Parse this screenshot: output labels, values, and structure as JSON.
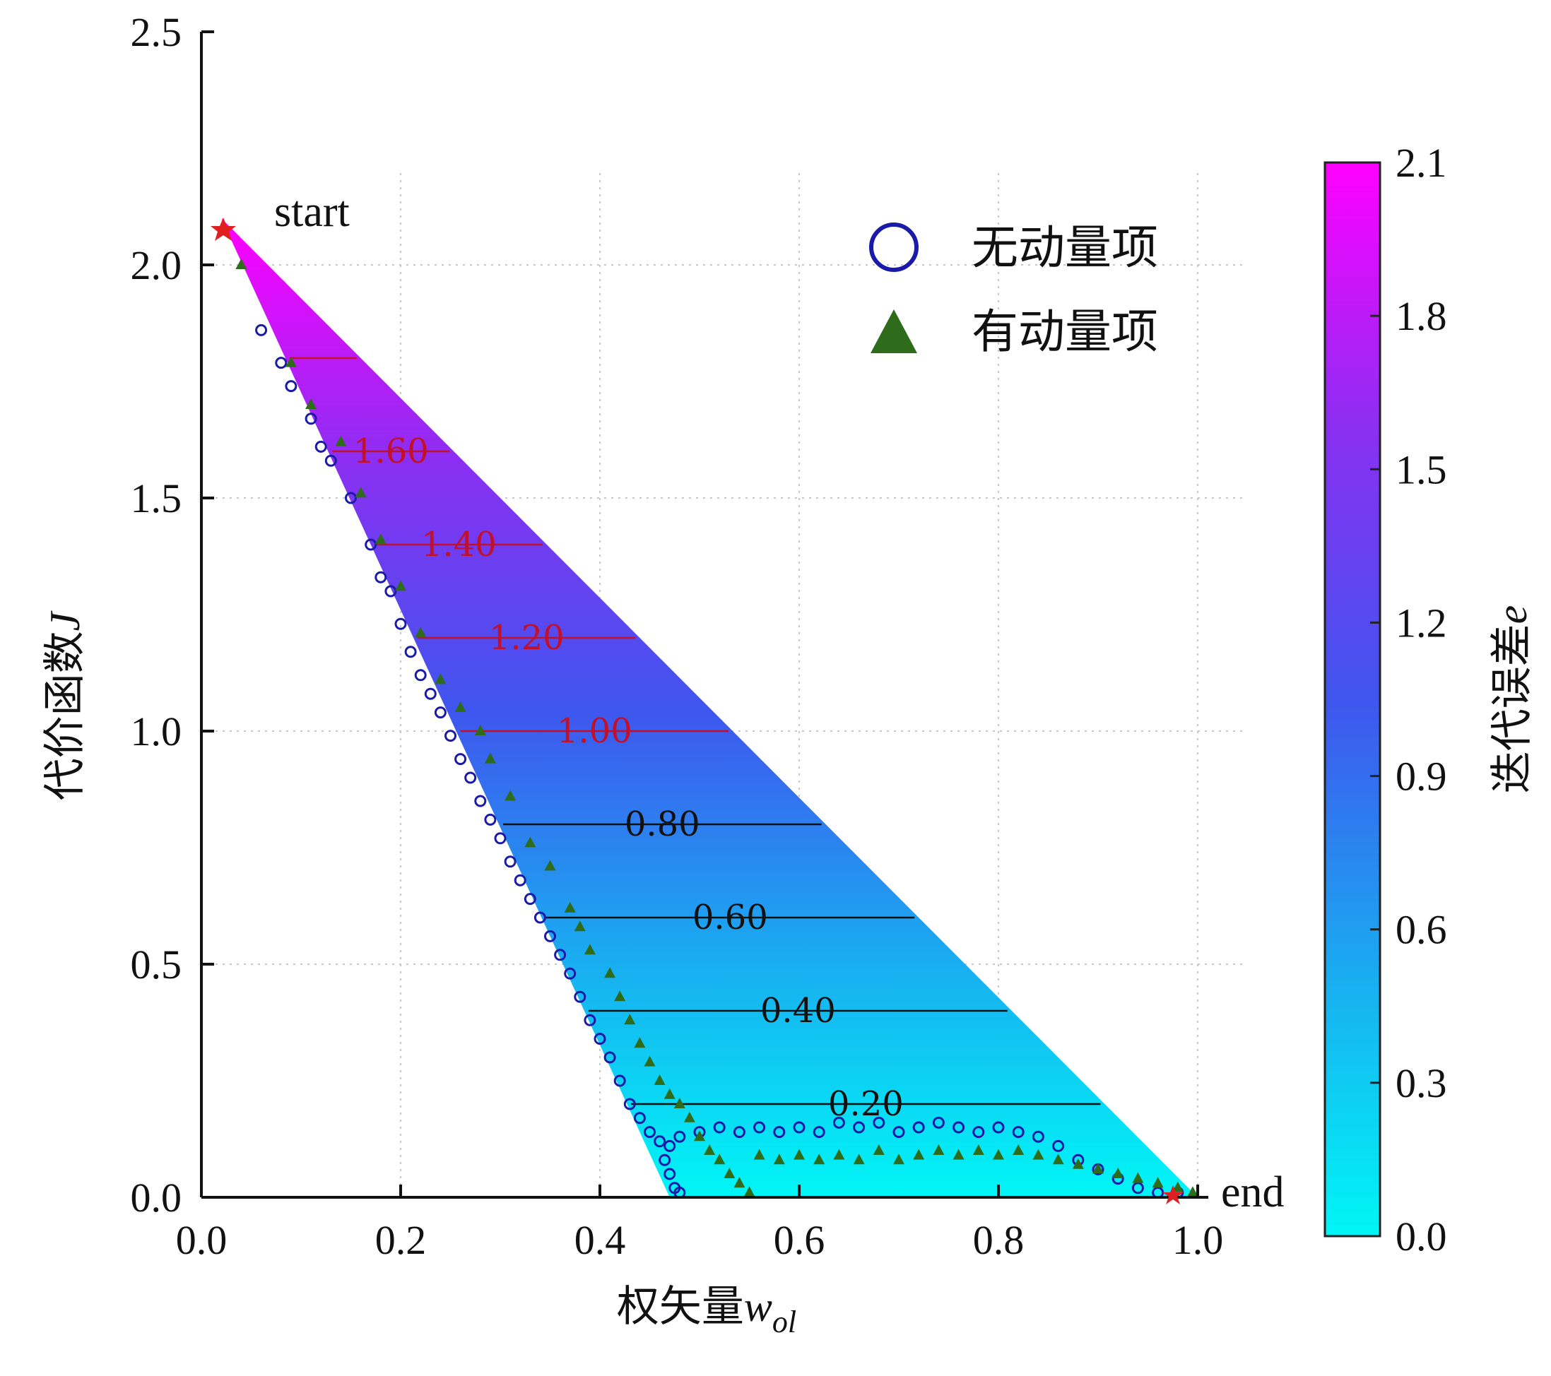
{
  "chart_data": {
    "type": "scatter",
    "xlabel": "权矢量",
    "xlabel_var": "w",
    "xlabel_sub": "ol",
    "ylabel": "代价函数",
    "ylabel_var": "J",
    "xlim": [
      0.0,
      1.0
    ],
    "ylim": [
      0.0,
      2.5
    ],
    "xticks": [
      "0.0",
      "0.2",
      "0.4",
      "0.6",
      "0.8",
      "1.0"
    ],
    "yticks": [
      "0.0",
      "0.5",
      "1.0",
      "1.5",
      "2.0",
      "2.5"
    ],
    "grid": true,
    "grid_style": "dotted",
    "legend_position": "top-right",
    "colorbar": {
      "label": "迭代误差",
      "label_var": "e",
      "range": [
        0.0,
        2.1
      ],
      "ticks": [
        "0.0",
        "0.3",
        "0.6",
        "0.9",
        "1.2",
        "1.5",
        "1.8",
        "2.1"
      ],
      "colors": [
        "#00f6f6",
        "#1aaaf0",
        "#3f55ee",
        "#8a2ff2",
        "#ff00ff"
      ]
    },
    "region": {
      "description": "filled triangle colored by iteration error",
      "vertices": [
        [
          0.02,
          2.1
        ],
        [
          1.0,
          0.0
        ],
        [
          0.47,
          0.0
        ]
      ]
    },
    "contours": [
      {
        "level": 0.2,
        "label": "0.20",
        "color": "#111111"
      },
      {
        "level": 0.4,
        "label": "0.40",
        "color": "#111111"
      },
      {
        "level": 0.6,
        "label": "0.60",
        "color": "#111111"
      },
      {
        "level": 0.8,
        "label": "0.80",
        "color": "#111111"
      },
      {
        "level": 1.0,
        "label": "1.00",
        "color": "#c0102a"
      },
      {
        "level": 1.2,
        "label": "1.20",
        "color": "#c0102a"
      },
      {
        "level": 1.4,
        "label": "1.40",
        "color": "#c0102a"
      },
      {
        "level": 1.6,
        "label": "1.60",
        "color": "#c0102a"
      },
      {
        "level": 1.8,
        "label": "",
        "color": "#c0102a"
      }
    ],
    "annotations": [
      {
        "text": "start",
        "x": 0.02,
        "y": 2.1
      },
      {
        "text": "end",
        "x": 1.0,
        "y": 0.0
      }
    ],
    "series": [
      {
        "name": "无动量项",
        "marker": "circle",
        "color": "#1a1aa8",
        "points": [
          [
            0.06,
            1.86
          ],
          [
            0.08,
            1.79
          ],
          [
            0.09,
            1.74
          ],
          [
            0.11,
            1.67
          ],
          [
            0.12,
            1.61
          ],
          [
            0.13,
            1.58
          ],
          [
            0.15,
            1.5
          ],
          [
            0.17,
            1.4
          ],
          [
            0.18,
            1.33
          ],
          [
            0.19,
            1.3
          ],
          [
            0.2,
            1.23
          ],
          [
            0.21,
            1.17
          ],
          [
            0.22,
            1.12
          ],
          [
            0.23,
            1.08
          ],
          [
            0.24,
            1.04
          ],
          [
            0.25,
            0.99
          ],
          [
            0.26,
            0.94
          ],
          [
            0.27,
            0.9
          ],
          [
            0.28,
            0.85
          ],
          [
            0.29,
            0.81
          ],
          [
            0.3,
            0.77
          ],
          [
            0.31,
            0.72
          ],
          [
            0.32,
            0.68
          ],
          [
            0.33,
            0.64
          ],
          [
            0.34,
            0.6
          ],
          [
            0.35,
            0.56
          ],
          [
            0.36,
            0.52
          ],
          [
            0.37,
            0.48
          ],
          [
            0.38,
            0.43
          ],
          [
            0.39,
            0.38
          ],
          [
            0.4,
            0.34
          ],
          [
            0.41,
            0.3
          ],
          [
            0.42,
            0.25
          ],
          [
            0.43,
            0.2
          ],
          [
            0.44,
            0.17
          ],
          [
            0.45,
            0.14
          ],
          [
            0.46,
            0.12
          ],
          [
            0.47,
            0.11
          ],
          [
            0.465,
            0.08
          ],
          [
            0.47,
            0.05
          ],
          [
            0.475,
            0.02
          ],
          [
            0.48,
            0.01
          ],
          [
            0.48,
            0.13
          ],
          [
            0.5,
            0.14
          ],
          [
            0.52,
            0.15
          ],
          [
            0.54,
            0.14
          ],
          [
            0.56,
            0.15
          ],
          [
            0.58,
            0.14
          ],
          [
            0.6,
            0.15
          ],
          [
            0.62,
            0.14
          ],
          [
            0.64,
            0.16
          ],
          [
            0.66,
            0.15
          ],
          [
            0.68,
            0.16
          ],
          [
            0.7,
            0.14
          ],
          [
            0.72,
            0.15
          ],
          [
            0.74,
            0.16
          ],
          [
            0.76,
            0.15
          ],
          [
            0.78,
            0.14
          ],
          [
            0.8,
            0.15
          ],
          [
            0.82,
            0.14
          ],
          [
            0.84,
            0.13
          ],
          [
            0.86,
            0.11
          ],
          [
            0.88,
            0.08
          ],
          [
            0.9,
            0.06
          ],
          [
            0.92,
            0.04
          ],
          [
            0.94,
            0.02
          ],
          [
            0.96,
            0.01
          ],
          [
            0.98,
            0.01
          ]
        ]
      },
      {
        "name": "有动量项",
        "marker": "triangle",
        "color": "#2e6b1a",
        "points": [
          [
            0.04,
            2.0
          ],
          [
            0.09,
            1.79
          ],
          [
            0.11,
            1.7
          ],
          [
            0.14,
            1.62
          ],
          [
            0.16,
            1.51
          ],
          [
            0.18,
            1.41
          ],
          [
            0.2,
            1.31
          ],
          [
            0.22,
            1.21
          ],
          [
            0.24,
            1.11
          ],
          [
            0.26,
            1.05
          ],
          [
            0.28,
            1.0
          ],
          [
            0.29,
            0.94
          ],
          [
            0.31,
            0.86
          ],
          [
            0.33,
            0.76
          ],
          [
            0.35,
            0.71
          ],
          [
            0.37,
            0.62
          ],
          [
            0.38,
            0.58
          ],
          [
            0.39,
            0.53
          ],
          [
            0.41,
            0.48
          ],
          [
            0.42,
            0.43
          ],
          [
            0.43,
            0.38
          ],
          [
            0.44,
            0.33
          ],
          [
            0.45,
            0.29
          ],
          [
            0.46,
            0.25
          ],
          [
            0.47,
            0.22
          ],
          [
            0.48,
            0.2
          ],
          [
            0.49,
            0.17
          ],
          [
            0.5,
            0.13
          ],
          [
            0.51,
            0.1
          ],
          [
            0.52,
            0.08
          ],
          [
            0.53,
            0.05
          ],
          [
            0.54,
            0.03
          ],
          [
            0.55,
            0.01
          ],
          [
            0.56,
            0.09
          ],
          [
            0.58,
            0.08
          ],
          [
            0.6,
            0.09
          ],
          [
            0.62,
            0.08
          ],
          [
            0.64,
            0.09
          ],
          [
            0.66,
            0.08
          ],
          [
            0.68,
            0.1
          ],
          [
            0.7,
            0.08
          ],
          [
            0.72,
            0.09
          ],
          [
            0.74,
            0.1
          ],
          [
            0.76,
            0.09
          ],
          [
            0.78,
            0.1
          ],
          [
            0.8,
            0.09
          ],
          [
            0.82,
            0.1
          ],
          [
            0.84,
            0.09
          ],
          [
            0.86,
            0.08
          ],
          [
            0.88,
            0.07
          ],
          [
            0.9,
            0.06
          ],
          [
            0.92,
            0.05
          ],
          [
            0.94,
            0.04
          ],
          [
            0.96,
            0.03
          ],
          [
            0.98,
            0.02
          ],
          [
            0.995,
            0.01
          ]
        ]
      }
    ]
  }
}
